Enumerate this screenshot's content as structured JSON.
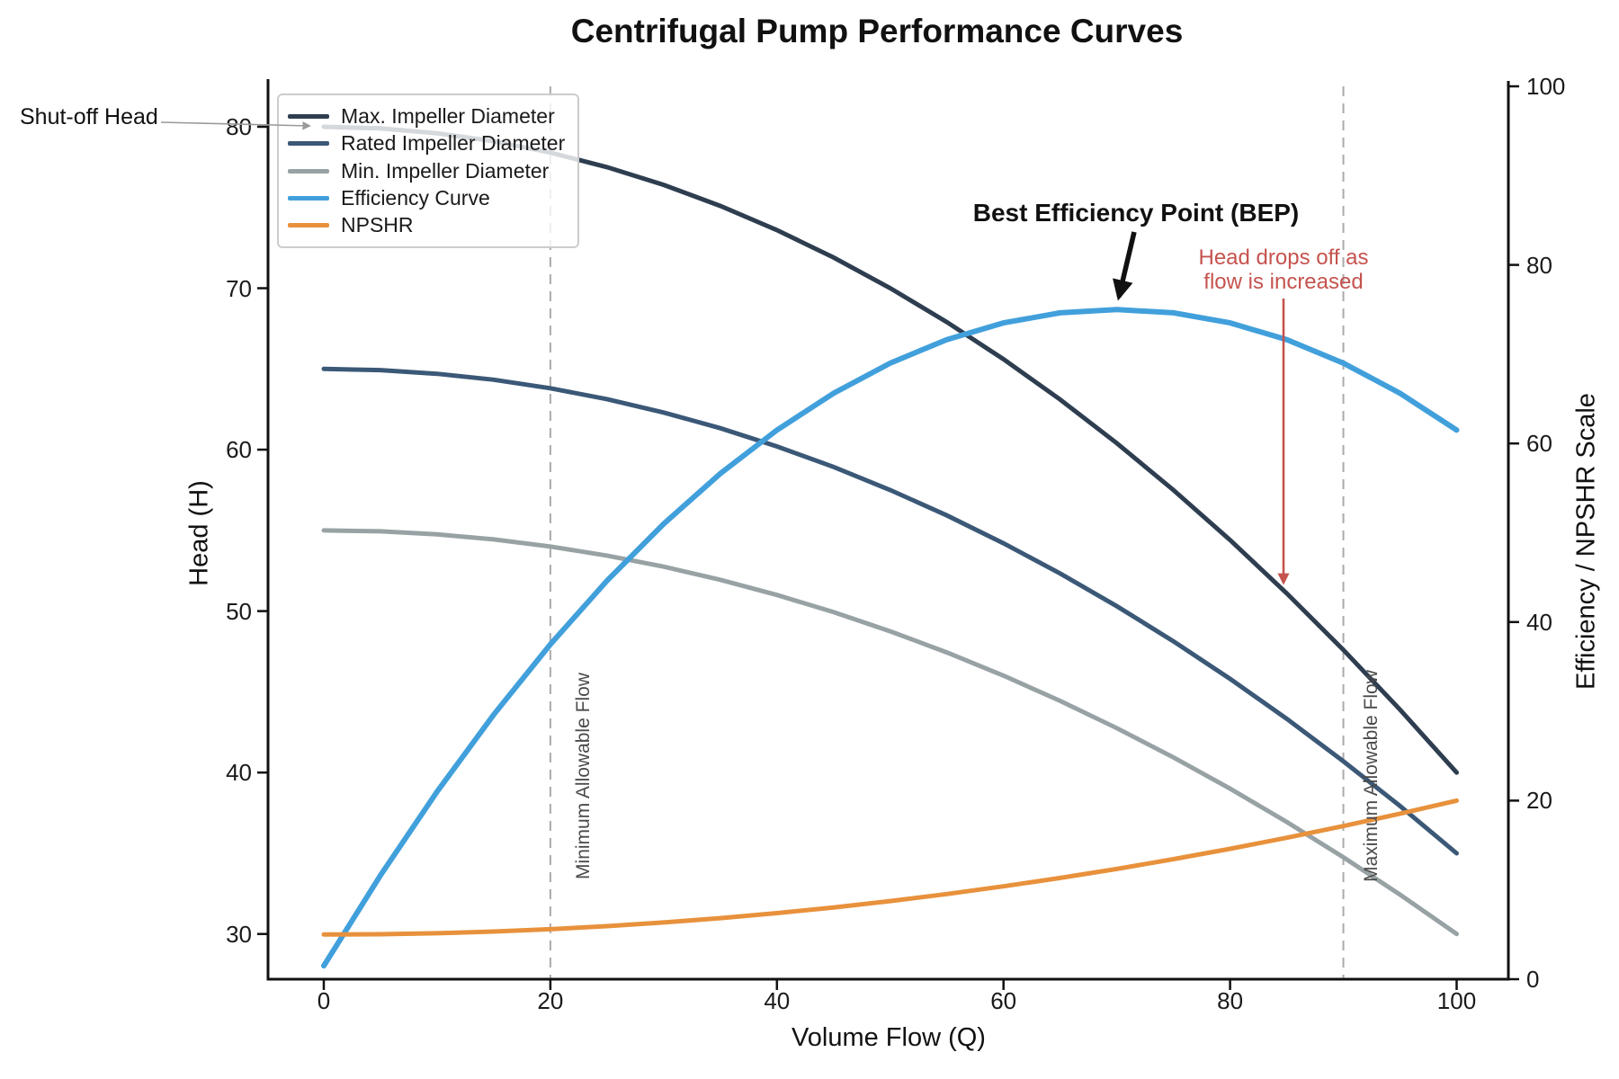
{
  "title": "Centrifugal Pump Performance Curves",
  "colors": {
    "max_impeller": "#2E3E50",
    "rated_impeller": "#3B5877",
    "min_impeller": "#98A2A4",
    "efficiency": "#41A0DB",
    "npshr": "#E8913C",
    "reference_dashed": "#ABABAB",
    "annotation_red": "#C5534E",
    "annotation_gray_arrow": "#9A9A9A",
    "axis": "#1a1a1a"
  },
  "chart_data": {
    "type": "line",
    "title": "Centrifugal Pump Performance Curves",
    "xlabel": "Volume Flow (Q)",
    "ylabel_left": "Head (H)",
    "ylabel_right": "Efficiency / NPSHR Scale",
    "xlim": [
      -5,
      105
    ],
    "ylim_left": [
      27.2,
      82.5
    ],
    "ylim_right": [
      0,
      100
    ],
    "x_ticks": [
      0,
      20,
      40,
      60,
      80,
      100
    ],
    "y_ticks_left": [
      30,
      40,
      50,
      60,
      70,
      80
    ],
    "y_ticks_right": [
      0,
      20,
      40,
      60,
      80,
      100
    ],
    "grid": false,
    "legend_position": "upper left",
    "x": [
      0,
      5,
      10,
      15,
      20,
      25,
      30,
      35,
      40,
      45,
      50,
      55,
      60,
      65,
      70,
      75,
      80,
      85,
      90,
      95,
      100
    ],
    "series": [
      {
        "name": "Max. Impeller Diameter",
        "axis": "left",
        "color": "#2E3E50",
        "width": 5,
        "values": [
          80,
          79.9,
          79.6,
          79.1,
          78.4,
          77.5,
          76.4,
          75.1,
          73.6,
          71.9,
          70,
          67.9,
          65.6,
          63.1,
          60.4,
          57.5,
          54.4,
          51.1,
          47.6,
          43.9,
          40
        ]
      },
      {
        "name": "Rated Impeller Diameter",
        "axis": "left",
        "color": "#3B5877",
        "width": 5,
        "values": [
          65,
          64.93,
          64.7,
          64.33,
          63.8,
          63.13,
          62.3,
          61.33,
          60.2,
          58.93,
          57.5,
          55.93,
          54.2,
          52.33,
          50.3,
          48.13,
          45.8,
          43.33,
          40.7,
          37.93,
          35
        ]
      },
      {
        "name": "Min. Impeller Diameter",
        "axis": "left",
        "color": "#98A2A4",
        "width": 5,
        "values": [
          55,
          54.94,
          54.75,
          54.44,
          54,
          53.44,
          52.75,
          51.94,
          51,
          49.94,
          48.75,
          47.44,
          46,
          44.44,
          42.75,
          40.94,
          39,
          36.94,
          34.75,
          32.44,
          30
        ]
      },
      {
        "name": "Efficiency Curve",
        "axis": "right",
        "color": "#41A0DB",
        "width": 6,
        "values": [
          1.5,
          11.63,
          21,
          29.63,
          37.5,
          44.63,
          51,
          56.63,
          61.5,
          65.63,
          69,
          71.63,
          73.5,
          74.63,
          75,
          74.63,
          73.5,
          71.63,
          69,
          65.63,
          61.5
        ]
      },
      {
        "name": "NPSHR",
        "axis": "right",
        "color": "#E8913C",
        "width": 5,
        "values": [
          5,
          5.04,
          5.15,
          5.34,
          5.6,
          5.94,
          6.35,
          6.84,
          7.4,
          8.04,
          8.75,
          9.54,
          10.4,
          11.34,
          12.35,
          13.44,
          14.6,
          15.84,
          17.15,
          18.54,
          20
        ]
      }
    ],
    "reference_lines": [
      {
        "label": "Minimum Allowable Flow",
        "x": 20
      },
      {
        "label": "Maximum Allowable Flow",
        "x": 90
      }
    ],
    "key_points": {
      "best_efficiency_point": {
        "x": 70,
        "efficiency": 75
      },
      "shut_off_head": {
        "x": 0,
        "head": 80
      }
    }
  },
  "annotations": {
    "shutoff": {
      "text": "Shut-off Head"
    },
    "bep": {
      "text": "Best Efficiency Point (BEP)"
    },
    "head_drop_line1": "Head drops off as",
    "head_drop_line2": "flow is increased",
    "min_flow": {
      "text": "Minimum Allowable Flow"
    },
    "max_flow": {
      "text": "Maximum Allowable Flow"
    }
  }
}
